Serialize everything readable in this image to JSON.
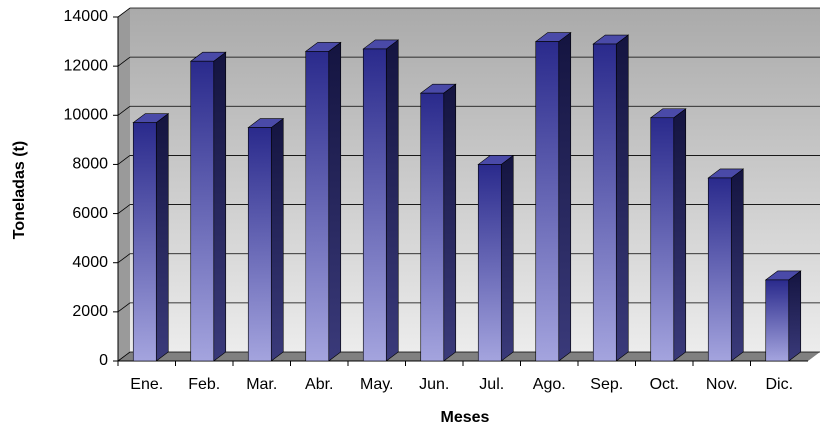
{
  "chart_data": {
    "type": "bar",
    "x_label": "Meses",
    "y_label": "Toneladas (t)",
    "categories": [
      "Ene.",
      "Feb.",
      "Mar.",
      "Abr.",
      "May.",
      "Jun.",
      "Jul.",
      "Ago.",
      "Sep.",
      "Oct.",
      "Nov.",
      "Dic."
    ],
    "values": [
      9700,
      12200,
      9500,
      12600,
      12700,
      10900,
      8000,
      13000,
      12900,
      9900,
      7450,
      3300
    ],
    "color": "#33339a",
    "ylim": [
      0,
      14000
    ],
    "yticks": [
      0,
      2000,
      4000,
      6000,
      8000,
      10000,
      12000,
      14000
    ],
    "grid": true
  }
}
